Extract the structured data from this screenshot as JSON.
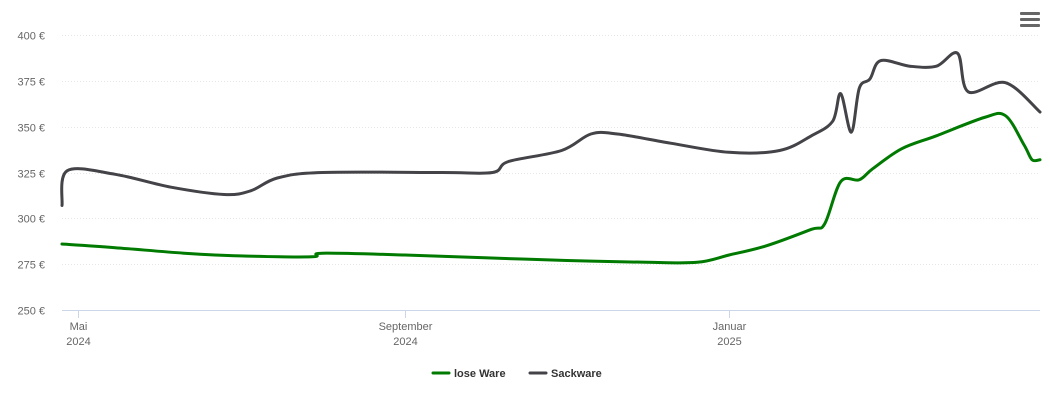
{
  "chart_data": {
    "type": "line",
    "y_ticks": [
      {
        "value": 250,
        "label": "250 €"
      },
      {
        "value": 275,
        "label": "275 €"
      },
      {
        "value": 300,
        "label": "300 €"
      },
      {
        "value": 325,
        "label": "325 €"
      },
      {
        "value": 350,
        "label": "350 €"
      },
      {
        "value": 375,
        "label": "375 €"
      },
      {
        "value": 400,
        "label": "400 €"
      }
    ],
    "ylim": [
      250,
      400
    ],
    "xlim": [
      "2024-04-25",
      "2025-04-28"
    ],
    "x_ticks": [
      {
        "date": "2024-05-01",
        "month": "Mai",
        "year": "2024"
      },
      {
        "date": "2024-09-01",
        "month": "September",
        "year": "2024"
      },
      {
        "date": "2025-01-01",
        "month": "Januar",
        "year": "2025"
      }
    ],
    "grid": true,
    "legend_position": "bottom-center",
    "series": [
      {
        "name": "lose Ware",
        "color": "#007a00",
        "points": [
          [
            "2024-04-25",
            286
          ],
          [
            "2024-05-15",
            284
          ],
          [
            "2024-06-10",
            281
          ],
          [
            "2024-07-01",
            279.5
          ],
          [
            "2024-07-28",
            279
          ],
          [
            "2024-08-01",
            281
          ],
          [
            "2024-09-01",
            280
          ],
          [
            "2024-10-01",
            278.5
          ],
          [
            "2024-11-01",
            277
          ],
          [
            "2024-12-01",
            276
          ],
          [
            "2024-12-20",
            276
          ],
          [
            "2025-01-01",
            280
          ],
          [
            "2025-01-15",
            285
          ],
          [
            "2025-02-01",
            294
          ],
          [
            "2025-02-06",
            297
          ],
          [
            "2025-02-12",
            320
          ],
          [
            "2025-02-19",
            321
          ],
          [
            "2025-02-24",
            327
          ],
          [
            "2025-03-07",
            338
          ],
          [
            "2025-03-20",
            345
          ],
          [
            "2025-04-07",
            355
          ],
          [
            "2025-04-15",
            356
          ],
          [
            "2025-04-22",
            340
          ],
          [
            "2025-04-25",
            332
          ],
          [
            "2025-04-28",
            332
          ]
        ]
      },
      {
        "name": "Sackware",
        "color": "#434348",
        "points": [
          [
            "2024-04-25",
            307
          ],
          [
            "2024-04-27",
            326
          ],
          [
            "2024-05-15",
            324
          ],
          [
            "2024-06-05",
            317
          ],
          [
            "2024-06-25",
            313
          ],
          [
            "2024-07-05",
            315
          ],
          [
            "2024-07-15",
            322
          ],
          [
            "2024-08-01",
            325
          ],
          [
            "2024-09-15",
            325
          ],
          [
            "2024-10-04",
            325
          ],
          [
            "2024-10-10",
            331
          ],
          [
            "2024-10-30",
            337
          ],
          [
            "2024-11-10",
            346
          ],
          [
            "2024-11-20",
            346
          ],
          [
            "2024-12-10",
            341
          ],
          [
            "2025-01-01",
            336
          ],
          [
            "2025-01-20",
            337
          ],
          [
            "2025-02-01",
            345
          ],
          [
            "2025-02-09",
            353
          ],
          [
            "2025-02-12",
            368
          ],
          [
            "2025-02-16",
            347
          ],
          [
            "2025-02-19",
            371
          ],
          [
            "2025-02-23",
            376
          ],
          [
            "2025-02-27",
            386
          ],
          [
            "2025-03-10",
            383
          ],
          [
            "2025-03-20",
            383
          ],
          [
            "2025-03-28",
            390
          ],
          [
            "2025-04-01",
            369
          ],
          [
            "2025-04-15",
            374
          ],
          [
            "2025-04-28",
            358
          ]
        ]
      }
    ]
  }
}
